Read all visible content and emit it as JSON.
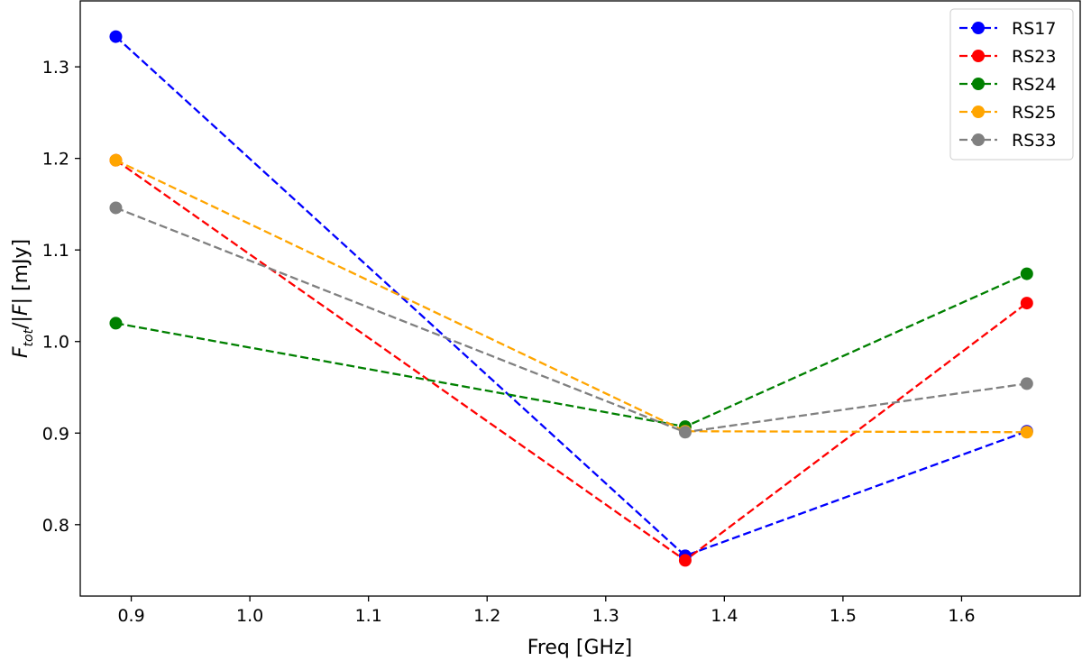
{
  "chart_data": {
    "type": "line",
    "title": "",
    "xlabel": "Freq [GHz]",
    "ylabel_parts": {
      "main": "F",
      "sub": "tot",
      "mid": "/|",
      "main2": "F",
      "end": "| [mJy]"
    },
    "xlim": [
      0.857,
      1.7
    ],
    "ylim": [
      0.722,
      1.372
    ],
    "xticks": [
      0.9,
      1.0,
      1.1,
      1.2,
      1.3,
      1.4,
      1.5,
      1.6
    ],
    "xtick_labels": [
      "0.9",
      "1.0",
      "1.1",
      "1.2",
      "1.3",
      "1.4",
      "1.5",
      "1.6"
    ],
    "yticks": [
      0.8,
      0.9,
      1.0,
      1.1,
      1.2,
      1.3
    ],
    "ytick_labels": [
      "0.8",
      "0.9",
      "1.0",
      "1.1",
      "1.2",
      "1.3"
    ],
    "grid": false,
    "legend_position": "top-right",
    "x": [
      0.887,
      1.367,
      1.655
    ],
    "series": [
      {
        "name": "RS17",
        "color": "#0000ff",
        "values": [
          1.333,
          0.766,
          0.902
        ]
      },
      {
        "name": "RS23",
        "color": "#ff0000",
        "values": [
          1.198,
          0.761,
          1.042
        ]
      },
      {
        "name": "RS24",
        "color": "#008000",
        "values": [
          1.02,
          0.907,
          1.074
        ]
      },
      {
        "name": "RS25",
        "color": "#ffa500",
        "values": [
          1.198,
          0.902,
          0.901
        ]
      },
      {
        "name": "RS33",
        "color": "#808080",
        "values": [
          1.146,
          0.901,
          0.954
        ]
      }
    ]
  }
}
